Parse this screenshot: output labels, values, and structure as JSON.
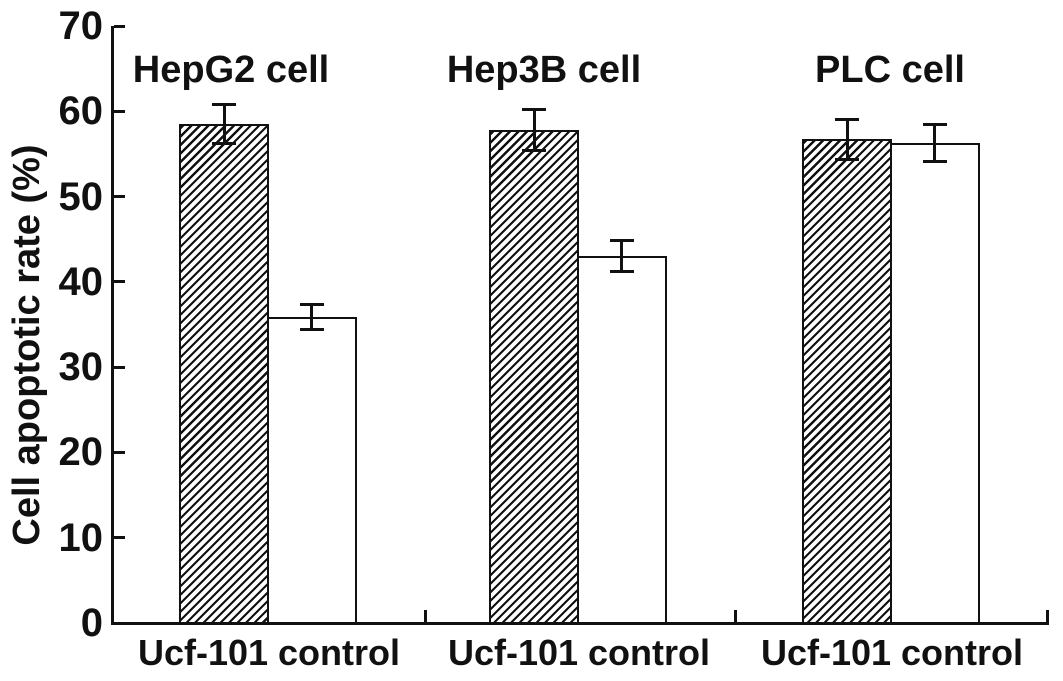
{
  "page": {
    "background": "#ffffff"
  },
  "colors": {
    "ink": "#111111",
    "background": "#ffffff",
    "bar_fill_hatched": "#111111",
    "bar_fill_control": "#ffffff"
  },
  "chart_data": {
    "type": "bar",
    "title": "",
    "xlabel": "",
    "ylabel": "Cell apoptotic rate (%)",
    "ylim": [
      0,
      70
    ],
    "yticks": [
      0,
      10,
      20,
      30,
      40,
      50,
      60,
      70
    ],
    "grid": false,
    "legend": null,
    "error_bars": true,
    "bar_styles": {
      "Ucf-101": "hatched-diagonal",
      "control": "white"
    },
    "groups": [
      {
        "name": "HepG2 cell",
        "bars": [
          {
            "label": "Ucf-101",
            "value": 58.5,
            "error": 2.3,
            "style": "hatched"
          },
          {
            "label": "control",
            "value": 35.9,
            "error": 1.5,
            "style": "white"
          }
        ]
      },
      {
        "name": "Hep3B cell",
        "bars": [
          {
            "label": "Ucf-101",
            "value": 57.8,
            "error": 2.4,
            "style": "hatched"
          },
          {
            "label": "control",
            "value": 43.0,
            "error": 1.8,
            "style": "white"
          }
        ]
      },
      {
        "name": "PLC cell",
        "bars": [
          {
            "label": "Ucf-101",
            "value": 56.7,
            "error": 2.3,
            "style": "hatched"
          },
          {
            "label": "control",
            "value": 56.3,
            "error": 2.2,
            "style": "white"
          }
        ]
      }
    ]
  }
}
